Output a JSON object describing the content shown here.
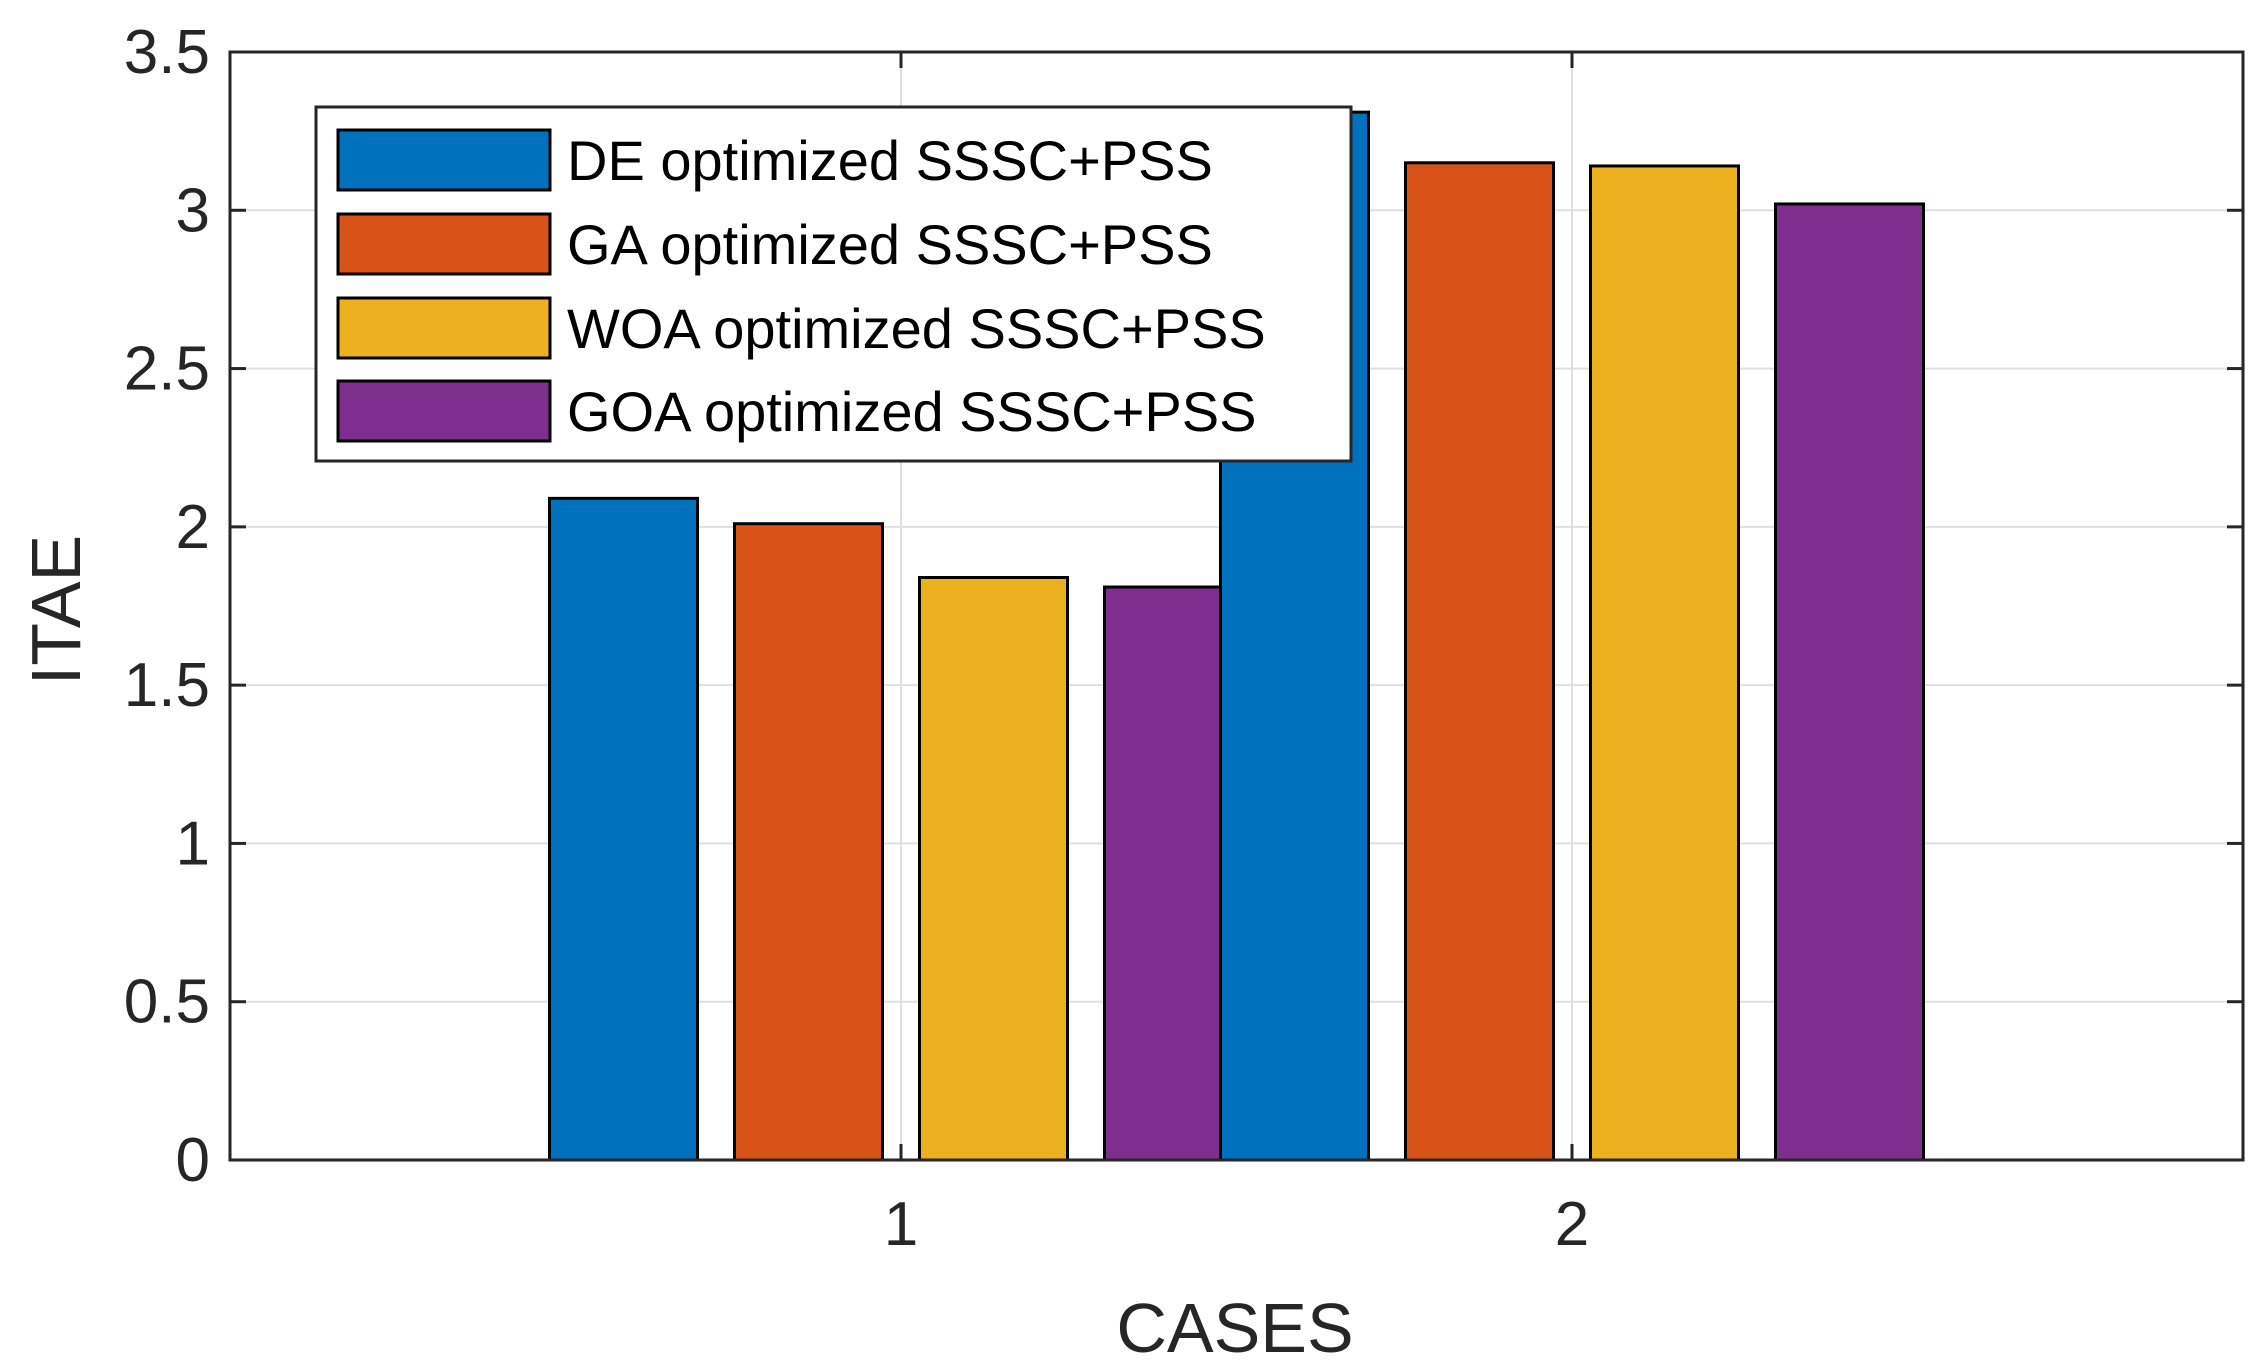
{
  "chart_data": {
    "type": "bar",
    "title": "",
    "xlabel": "CASES",
    "ylabel": "ITAE",
    "categories": [
      "1",
      "2"
    ],
    "ylim": [
      0,
      3.5
    ],
    "yticks": [
      "0",
      "0.5",
      "1",
      "1.5",
      "2",
      "2.5",
      "3",
      "3.5"
    ],
    "grid": true,
    "legend_position": "top-left",
    "series": [
      {
        "name": "DE optimized SSSC+PSS",
        "color": "#0072BD",
        "values": [
          2.09,
          3.31
        ]
      },
      {
        "name": "GA optimized SSSC+PSS",
        "color": "#D95319",
        "values": [
          2.01,
          3.15
        ]
      },
      {
        "name": "WOA optimized SSSC+PSS",
        "color": "#EDB120",
        "values": [
          1.84,
          3.14
        ]
      },
      {
        "name": "GOA optimized SSSC+PSS",
        "color": "#7E2F8E",
        "values": [
          1.81,
          3.02
        ]
      }
    ]
  }
}
